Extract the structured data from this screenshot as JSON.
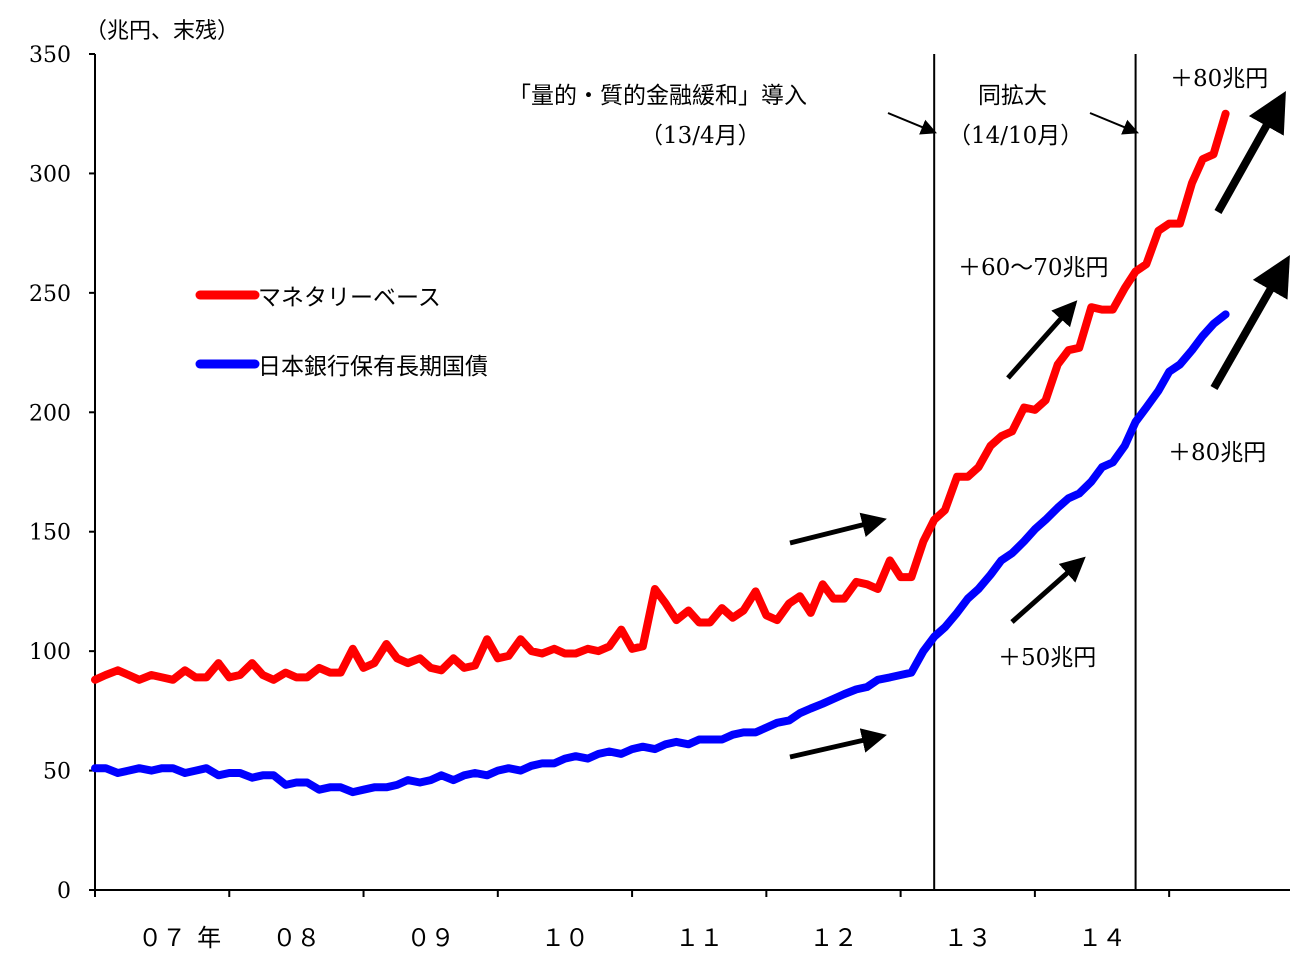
{
  "chart_data": {
    "type": "line",
    "unit_label": "（兆円、末残）",
    "ylim": [
      0,
      350
    ],
    "yticks": [
      0,
      50,
      100,
      150,
      200,
      250,
      300,
      350
    ],
    "x_range": [
      2007.0,
      2015.9
    ],
    "x_categories": [
      {
        "label": "０７",
        "x": 2007.5
      },
      {
        "label": "年",
        "x": 2007.85
      },
      {
        "label": "０８",
        "x": 2008.5
      },
      {
        "label": "０９",
        "x": 2009.5
      },
      {
        "label": "１０",
        "x": 2010.5
      },
      {
        "label": "１１",
        "x": 2011.5
      },
      {
        "label": "１２",
        "x": 2012.5
      },
      {
        "label": "１３",
        "x": 2013.5
      },
      {
        "label": "１４",
        "x": 2014.5
      }
    ],
    "legend": {
      "position": "upper-left"
    },
    "series": [
      {
        "name": "マネタリーベース",
        "color": "#ff0000",
        "x": [
          2007.0,
          2007.08,
          2007.17,
          2007.25,
          2007.33,
          2007.42,
          2007.5,
          2007.58,
          2007.67,
          2007.75,
          2007.83,
          2007.92,
          2008.0,
          2008.08,
          2008.17,
          2008.25,
          2008.33,
          2008.42,
          2008.5,
          2008.58,
          2008.67,
          2008.75,
          2008.83,
          2008.92,
          2009.0,
          2009.08,
          2009.17,
          2009.25,
          2009.33,
          2009.42,
          2009.5,
          2009.58,
          2009.67,
          2009.75,
          2009.83,
          2009.92,
          2010.0,
          2010.08,
          2010.17,
          2010.25,
          2010.33,
          2010.42,
          2010.5,
          2010.58,
          2010.67,
          2010.75,
          2010.83,
          2010.92,
          2011.0,
          2011.08,
          2011.17,
          2011.25,
          2011.33,
          2011.42,
          2011.5,
          2011.58,
          2011.67,
          2011.75,
          2011.83,
          2011.92,
          2012.0,
          2012.08,
          2012.17,
          2012.25,
          2012.33,
          2012.42,
          2012.5,
          2012.58,
          2012.67,
          2012.75,
          2012.83,
          2012.92,
          2013.0,
          2013.08,
          2013.17,
          2013.25,
          2013.33,
          2013.42,
          2013.5,
          2013.58,
          2013.67,
          2013.75,
          2013.83,
          2013.92,
          2014.0,
          2014.08,
          2014.17,
          2014.25,
          2014.33,
          2014.42,
          2014.5,
          2014.58,
          2014.67,
          2014.75,
          2014.83,
          2014.92,
          2015.0,
          2015.08,
          2015.17,
          2015.25,
          2015.33,
          2015.42
        ],
        "values": [
          88,
          90,
          92,
          90,
          88,
          90,
          89,
          88,
          92,
          89,
          89,
          95,
          89,
          90,
          95,
          90,
          88,
          91,
          89,
          89,
          93,
          91,
          91,
          101,
          93,
          95,
          103,
          97,
          95,
          97,
          93,
          92,
          97,
          93,
          94,
          105,
          97,
          98,
          105,
          100,
          99,
          101,
          99,
          99,
          101,
          100,
          102,
          109,
          101,
          102,
          126,
          120,
          113,
          117,
          112,
          112,
          118,
          114,
          117,
          125,
          115,
          113,
          120,
          123,
          116,
          128,
          122,
          122,
          129,
          128,
          126,
          138,
          131,
          131,
          146,
          155,
          159,
          173,
          173,
          177,
          186,
          190,
          192,
          202,
          201,
          205,
          220,
          226,
          227,
          244,
          243,
          243,
          252,
          259,
          262,
          276,
          279,
          279,
          296,
          306,
          308,
          325
        ]
      },
      {
        "name": "日本銀行保有長期国債",
        "color": "#0000ff",
        "x": [
          2007.0,
          2007.08,
          2007.17,
          2007.25,
          2007.33,
          2007.42,
          2007.5,
          2007.58,
          2007.67,
          2007.75,
          2007.83,
          2007.92,
          2008.0,
          2008.08,
          2008.17,
          2008.25,
          2008.33,
          2008.42,
          2008.5,
          2008.58,
          2008.67,
          2008.75,
          2008.83,
          2008.92,
          2009.0,
          2009.08,
          2009.17,
          2009.25,
          2009.33,
          2009.42,
          2009.5,
          2009.58,
          2009.67,
          2009.75,
          2009.83,
          2009.92,
          2010.0,
          2010.08,
          2010.17,
          2010.25,
          2010.33,
          2010.42,
          2010.5,
          2010.58,
          2010.67,
          2010.75,
          2010.83,
          2010.92,
          2011.0,
          2011.08,
          2011.17,
          2011.25,
          2011.33,
          2011.42,
          2011.5,
          2011.58,
          2011.67,
          2011.75,
          2011.83,
          2011.92,
          2012.0,
          2012.08,
          2012.17,
          2012.25,
          2012.33,
          2012.42,
          2012.5,
          2012.58,
          2012.67,
          2012.75,
          2012.83,
          2012.92,
          2013.0,
          2013.08,
          2013.17,
          2013.25,
          2013.33,
          2013.42,
          2013.5,
          2013.58,
          2013.67,
          2013.75,
          2013.83,
          2013.92,
          2014.0,
          2014.08,
          2014.17,
          2014.25,
          2014.33,
          2014.42,
          2014.5,
          2014.58,
          2014.67,
          2014.75,
          2014.83,
          2014.92,
          2015.0,
          2015.08,
          2015.17,
          2015.25,
          2015.33,
          2015.42
        ],
        "values": [
          51,
          51,
          49,
          50,
          51,
          50,
          51,
          51,
          49,
          50,
          51,
          48,
          49,
          49,
          47,
          48,
          48,
          44,
          45,
          45,
          42,
          43,
          43,
          41,
          42,
          43,
          43,
          44,
          46,
          45,
          46,
          48,
          46,
          48,
          49,
          48,
          50,
          51,
          50,
          52,
          53,
          53,
          55,
          56,
          55,
          57,
          58,
          57,
          59,
          60,
          59,
          61,
          62,
          61,
          63,
          63,
          63,
          65,
          66,
          66,
          68,
          70,
          71,
          74,
          76,
          78,
          80,
          82,
          84,
          85,
          88,
          89,
          90,
          91,
          100,
          106,
          110,
          116,
          122,
          126,
          132,
          138,
          141,
          146,
          151,
          155,
          160,
          164,
          166,
          171,
          177,
          179,
          186,
          196,
          202,
          209,
          217,
          220,
          226,
          232,
          237,
          241
        ]
      }
    ],
    "vlines": [
      {
        "x": 2013.25,
        "label": "「量的・質的金融緩和」導入",
        "sublabel": "（13/4月）"
      },
      {
        "x": 2014.75,
        "label": "同拡大",
        "sublabel": "（14/10月）"
      }
    ],
    "annotations": [
      "＋60～70兆円",
      "＋80兆円",
      "＋50兆円",
      "＋80兆円"
    ]
  }
}
